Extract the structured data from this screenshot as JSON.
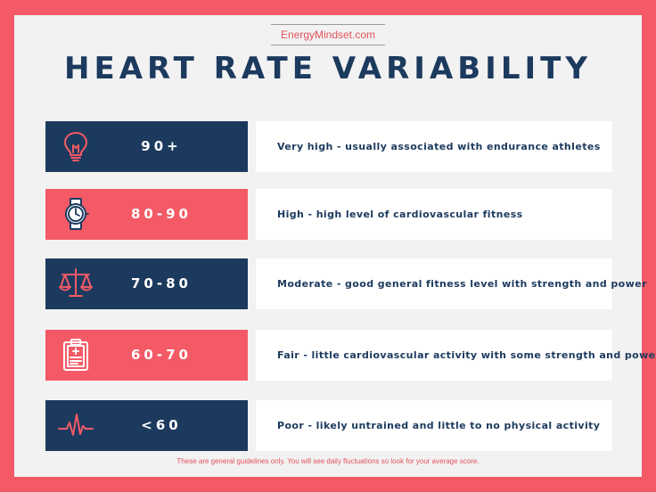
{
  "header": {
    "site": "EnergyMindset.com",
    "title": "HEART RATE VARIABILITY"
  },
  "rows": [
    {
      "range": "90+",
      "description": "Very high - usually associated with endurance athletes",
      "icon": "lightbulb-icon",
      "box_color": "#1c3a5e",
      "icon_color": "#f45a66"
    },
    {
      "range": "80-90",
      "description": "High - high level of cardiovascular fitness",
      "icon": "watch-icon",
      "box_color": "#f45a66",
      "icon_color": "#1c3a5e"
    },
    {
      "range": "70-80",
      "description": "Moderate - good general fitness level with strength and power",
      "icon": "scales-icon",
      "box_color": "#1c3a5e",
      "icon_color": "#f45a66"
    },
    {
      "range": "60-70",
      "description": "Fair - little cardiovascular activity with some strength and power",
      "icon": "clipboard-icon",
      "box_color": "#f45a66",
      "icon_color": "#ffffff"
    },
    {
      "range": "<60",
      "description": "Poor - likely untrained and little to no physical activity",
      "icon": "heartbeat-icon",
      "box_color": "#1c3a5e",
      "icon_color": "#f45a66"
    }
  ],
  "footnote": "These are general guidelines only. You will see daily fluctuations so look for your average score."
}
